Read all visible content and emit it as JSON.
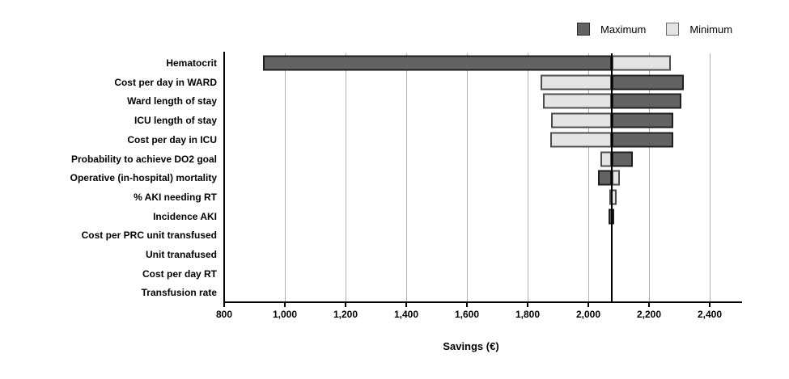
{
  "legend": {
    "items": [
      {
        "label": "Maximum",
        "fill": "#636363",
        "border": "#2a2a2a"
      },
      {
        "label": "Minimum",
        "fill": "#e4e4e4",
        "border": "#6e6e6e"
      }
    ]
  },
  "chart_data": {
    "type": "bar",
    "subtype": "tornado",
    "title": "",
    "xlabel": "Savings (€)",
    "ylabel": "",
    "xlim": [
      800,
      2507
    ],
    "baseline": 2077,
    "grid": true,
    "legend_position": "top-right",
    "x_ticks": [
      {
        "value": 800,
        "label": "800"
      },
      {
        "value": 1000,
        "label": "1,000"
      },
      {
        "value": 1200,
        "label": "1,200"
      },
      {
        "value": 1400,
        "label": "1,400"
      },
      {
        "value": 1600,
        "label": "1,600"
      },
      {
        "value": 1800,
        "label": "1,800"
      },
      {
        "value": 2000,
        "label": "2,000"
      },
      {
        "value": 2200,
        "label": "2,200"
      },
      {
        "value": 2400,
        "label": "2,400"
      }
    ],
    "series_colors": {
      "maximum": {
        "fill": "#636363",
        "border": "#1f1f1f"
      },
      "minimum": {
        "fill": "#e4e4e4",
        "border": "#4d4d4d"
      }
    },
    "rows": [
      {
        "label": "Hematocrit",
        "maximum": [
          928,
          2077
        ],
        "minimum": [
          2077,
          2273
        ]
      },
      {
        "label": "Cost per day in WARD",
        "minimum": [
          1843,
          2077
        ],
        "maximum": [
          2077,
          2315
        ]
      },
      {
        "label": "Ward length of stay",
        "minimum": [
          1851,
          2077
        ],
        "maximum": [
          2077,
          2306
        ]
      },
      {
        "label": "ICU length of stay",
        "minimum": [
          1877,
          2077
        ],
        "maximum": [
          2077,
          2281
        ]
      },
      {
        "label": "Cost per day in ICU",
        "minimum": [
          1875,
          2077
        ],
        "maximum": [
          2077,
          2281
        ]
      },
      {
        "label": "Probability to achieve DO2 goal",
        "minimum": [
          2039,
          2077
        ],
        "maximum": [
          2077,
          2146
        ]
      },
      {
        "label": "Operative (in-hospital) mortality",
        "maximum": [
          2032,
          2077
        ],
        "minimum": [
          2077,
          2103
        ]
      },
      {
        "label": "% AKI needing RT",
        "minimum": [
          2069,
          2092
        ]
      },
      {
        "label": "Incidence AKI",
        "maximum": [
          2067,
          2086
        ]
      },
      {
        "label": "Cost per PRC unit transfused"
      },
      {
        "label": "Unit tranafused"
      },
      {
        "label": "Cost per day RT"
      },
      {
        "label": "Transfusion rate"
      }
    ]
  }
}
